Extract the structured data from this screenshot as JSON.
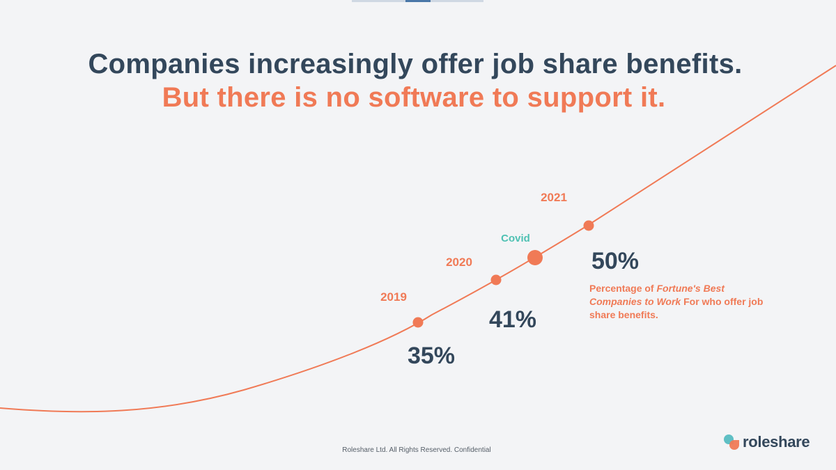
{
  "title_line1": "Companies increasingly offer job share benefits.",
  "title_line2": "But there is no software to support it.",
  "colors": {
    "dark_text": "#33475b",
    "accent_orange": "#f07a56",
    "covid_teal": "#4fc1b3",
    "background": "#f3f4f6",
    "logo_teal": "#5fbfc4",
    "logo_orange": "#f07a56",
    "topbar_light": "#cfd8e3",
    "topbar_blue": "#4a77a8"
  },
  "chart_data": {
    "type": "line",
    "points": [
      {
        "year": "2019",
        "value": 35,
        "value_label": "35%"
      },
      {
        "year": "2020",
        "value": 41,
        "value_label": "41%"
      },
      {
        "year": "Covid",
        "value": null,
        "value_label": ""
      },
      {
        "year": "2021",
        "value": 50,
        "value_label": "50%"
      }
    ],
    "xlabel": "",
    "ylabel": "",
    "grid": false,
    "legend": "none"
  },
  "note": {
    "prefix": "Percentage of ",
    "italic": "Fortune's Best Companies to Work",
    "suffix": " For who offer job share benefits."
  },
  "footer_text": "Roleshare Ltd. All Rights Reserved. Confidential",
  "logo": {
    "text": "roleshare",
    "icon": "roleshare-logo-icon"
  }
}
